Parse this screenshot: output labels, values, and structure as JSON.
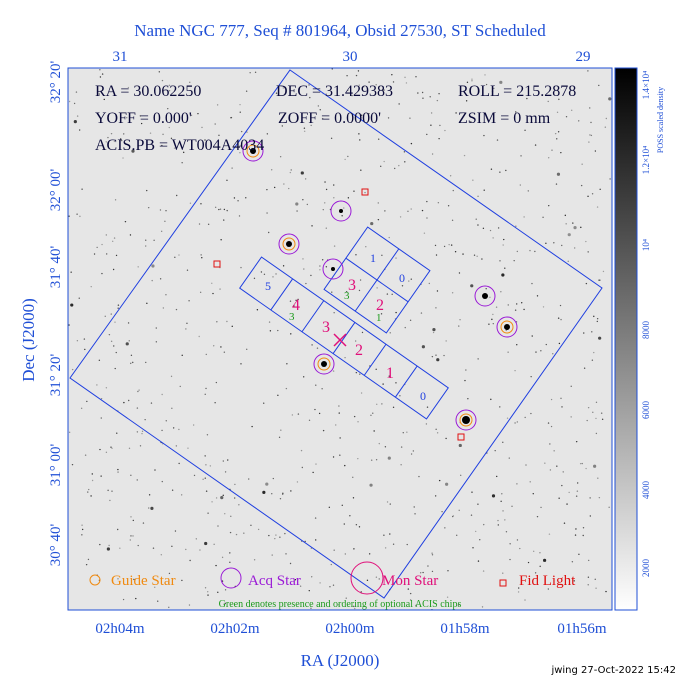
{
  "title": "Name NGC 777, Seq # 801964, Obsid 27530, ST Scheduled",
  "info": [
    "RA = 30.062250",
    "DEC = 31.429383",
    "ROLL = 215.2878",
    "YOFF = 0.000'",
    "ZOFF = 0.0000'",
    "ZSIM = 0 mm",
    "ACIS.PB = WT004A4034"
  ],
  "axes": {
    "top_ticks": [
      "31",
      "30",
      "29"
    ],
    "left_ticks": [
      "32° 20'",
      "32° 00'",
      "31° 40'",
      "31° 20'",
      "31° 00'",
      "30° 40'"
    ],
    "bottom_ticks": [
      "02h04m",
      "02h02m",
      "02h00m",
      "01h58m",
      "01h56m"
    ],
    "x_label": "RA (J2000)",
    "y_label": "Dec (J2000)"
  },
  "colorbar": {
    "label": "POSS scaled density",
    "ticks": [
      "2000",
      "4000",
      "6000",
      "8000",
      "10⁴",
      "1.2×10⁴",
      "1.4×10⁴"
    ]
  },
  "chips": {
    "i_array": [
      "1",
      "0",
      "3",
      "2"
    ],
    "s_array": [
      "5",
      "4",
      "3",
      "2",
      "1",
      "0"
    ]
  },
  "optional_chips": [
    "3",
    "3",
    "1"
  ],
  "legend": [
    "Guide Star",
    "Acq Star",
    "Mon Star",
    "Fid Light"
  ],
  "note": "Green denotes presence and ordering of optional ACIS chips",
  "footer": "jwing 27-Oct-2022 15:42"
}
